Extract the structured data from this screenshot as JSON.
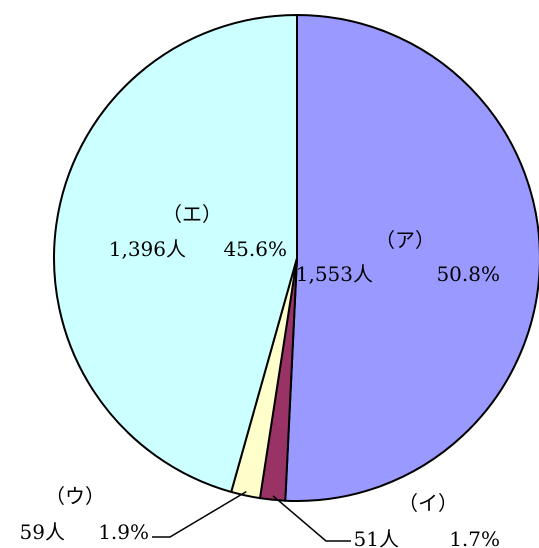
{
  "chart_data": {
    "type": "pie",
    "title": "",
    "start": "12 o'clock",
    "direction": "clockwise",
    "slices": [
      {
        "label": "（ア）",
        "count": "1,553人",
        "percent": "50.8%",
        "value": 1553,
        "share": 50.8,
        "color": "#9999ff"
      },
      {
        "label": "（イ）",
        "count": "51人",
        "percent": "1.7%",
        "value": 51,
        "share": 1.7,
        "color": "#993366"
      },
      {
        "label": "（ウ）",
        "count": "59人",
        "percent": "1.9%",
        "value": 59,
        "share": 1.9,
        "color": "#ffffcc"
      },
      {
        "label": "（エ）",
        "count": "1,396人",
        "percent": "45.6%",
        "value": 1396,
        "share": 45.6,
        "color": "#ccffff"
      }
    ]
  }
}
